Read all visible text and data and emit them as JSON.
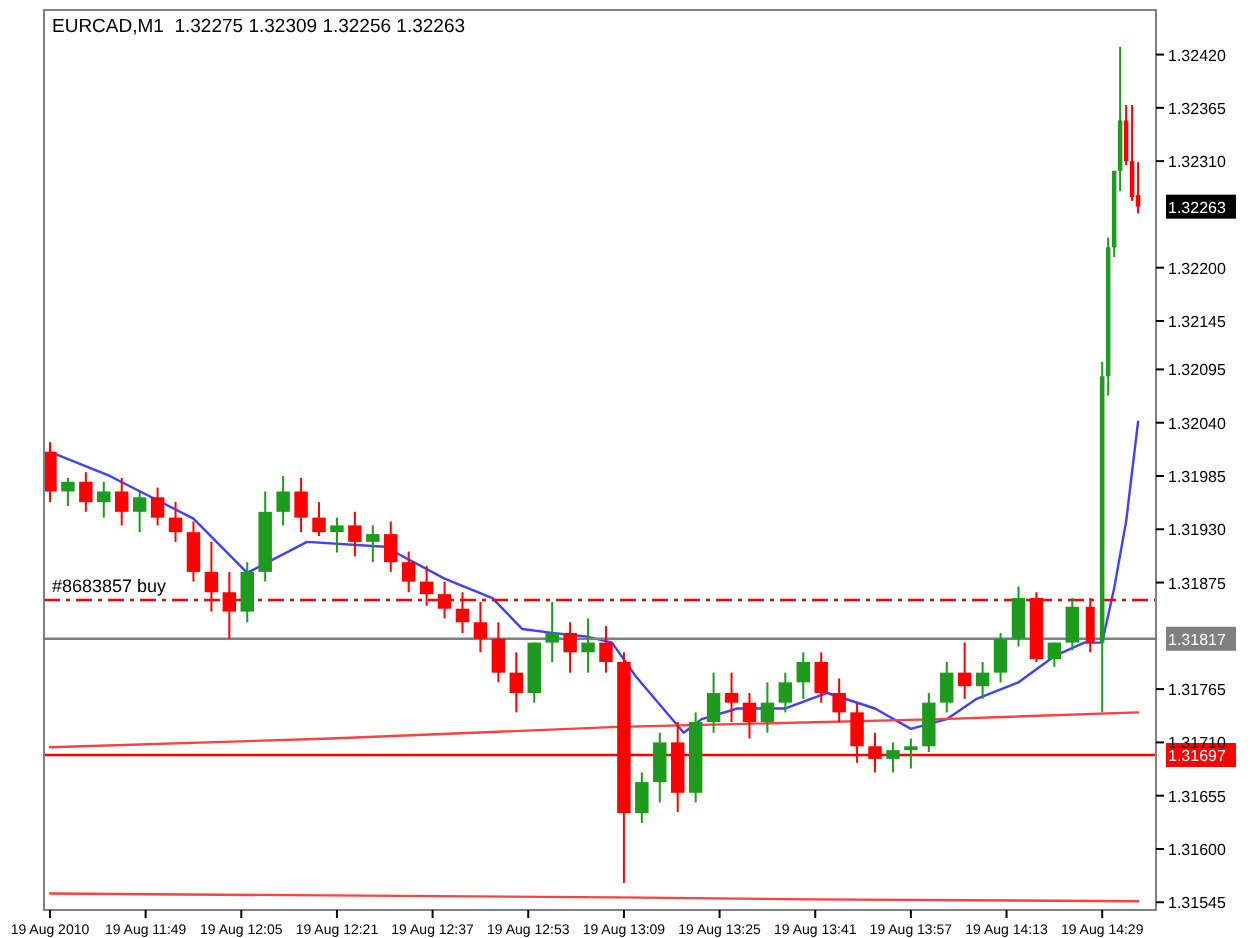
{
  "chart_data": {
    "type": "candlestick",
    "title": "EURCAD,M1  1.32275 1.32309 1.32256 1.32263",
    "x": [
      "2010-08-19T11:33",
      "2010-08-19T11:36",
      "2010-08-19T11:39",
      "2010-08-19T11:42",
      "2010-08-19T11:45",
      "2010-08-19T11:48",
      "2010-08-19T11:51",
      "2010-08-19T11:54",
      "2010-08-19T11:57",
      "2010-08-19T12:00",
      "2010-08-19T12:03",
      "2010-08-19T12:06",
      "2010-08-19T12:09",
      "2010-08-19T12:12",
      "2010-08-19T12:15",
      "2010-08-19T12:18",
      "2010-08-19T12:21",
      "2010-08-19T12:24",
      "2010-08-19T12:27",
      "2010-08-19T12:30",
      "2010-08-19T12:33",
      "2010-08-19T12:36",
      "2010-08-19T12:39",
      "2010-08-19T12:42",
      "2010-08-19T12:45",
      "2010-08-19T12:48",
      "2010-08-19T12:51",
      "2010-08-19T12:54",
      "2010-08-19T12:57",
      "2010-08-19T13:00",
      "2010-08-19T13:03",
      "2010-08-19T13:06",
      "2010-08-19T13:09",
      "2010-08-19T13:12",
      "2010-08-19T13:15",
      "2010-08-19T13:18",
      "2010-08-19T13:21",
      "2010-08-19T13:24",
      "2010-08-19T13:27",
      "2010-08-19T13:30",
      "2010-08-19T13:33",
      "2010-08-19T13:36",
      "2010-08-19T13:39",
      "2010-08-19T13:42",
      "2010-08-19T13:45",
      "2010-08-19T13:48",
      "2010-08-19T13:51",
      "2010-08-19T13:54",
      "2010-08-19T13:57",
      "2010-08-19T14:00",
      "2010-08-19T14:03",
      "2010-08-19T14:06",
      "2010-08-19T14:09",
      "2010-08-19T14:12",
      "2010-08-19T14:15",
      "2010-08-19T14:18",
      "2010-08-19T14:21",
      "2010-08-19T14:24",
      "2010-08-19T14:27",
      "2010-08-19T14:29",
      "2010-08-19T14:30",
      "2010-08-19T14:31",
      "2010-08-19T14:32",
      "2010-08-19T14:33",
      "2010-08-19T14:34",
      "2010-08-19T14:35"
    ],
    "ohlc": [
      [
        1.3201,
        1.3202,
        1.31958,
        1.31969
      ],
      [
        1.31969,
        1.31983,
        1.31954,
        1.31979
      ],
      [
        1.31979,
        1.31989,
        1.31948,
        1.31958
      ],
      [
        1.31958,
        1.31979,
        1.31942,
        1.31969
      ],
      [
        1.31969,
        1.31983,
        1.31934,
        1.31948
      ],
      [
        1.31948,
        1.31969,
        1.31927,
        1.31963
      ],
      [
        1.31963,
        1.31973,
        1.31934,
        1.31942
      ],
      [
        1.31942,
        1.31958,
        1.31917,
        1.31927
      ],
      [
        1.31927,
        1.31938,
        1.31876,
        1.31886
      ],
      [
        1.31886,
        1.31917,
        1.31845,
        1.31865
      ],
      [
        1.31865,
        1.31886,
        1.31817,
        1.31845
      ],
      [
        1.31845,
        1.31896,
        1.31834,
        1.31886
      ],
      [
        1.31886,
        1.31969,
        1.31876,
        1.31948
      ],
      [
        1.31948,
        1.31985,
        1.31934,
        1.31969
      ],
      [
        1.31969,
        1.31983,
        1.31927,
        1.31942
      ],
      [
        1.31942,
        1.31958,
        1.31923,
        1.31927
      ],
      [
        1.31927,
        1.31942,
        1.31906,
        1.31934
      ],
      [
        1.31934,
        1.31948,
        1.31902,
        1.31917
      ],
      [
        1.31917,
        1.31934,
        1.31896,
        1.31925
      ],
      [
        1.31925,
        1.31938,
        1.31886,
        1.31896
      ],
      [
        1.31896,
        1.31907,
        1.31865,
        1.31876
      ],
      [
        1.31876,
        1.31892,
        1.31851,
        1.31863
      ],
      [
        1.31863,
        1.31876,
        1.31838,
        1.31848
      ],
      [
        1.31848,
        1.31865,
        1.31823,
        1.31834
      ],
      [
        1.31834,
        1.31855,
        1.31803,
        1.31817
      ],
      [
        1.31817,
        1.31834,
        1.31772,
        1.31782
      ],
      [
        1.31782,
        1.31803,
        1.31741,
        1.31761
      ],
      [
        1.31761,
        1.31813,
        1.31751,
        1.31813
      ],
      [
        1.31813,
        1.31855,
        1.31793,
        1.31823
      ],
      [
        1.31823,
        1.31834,
        1.31782,
        1.31803
      ],
      [
        1.31803,
        1.31838,
        1.31782,
        1.31813
      ],
      [
        1.31813,
        1.3183,
        1.31782,
        1.31793
      ],
      [
        1.31793,
        1.31803,
        1.31565,
        1.31637
      ],
      [
        1.31637,
        1.31679,
        1.31627,
        1.31669
      ],
      [
        1.31669,
        1.3172,
        1.31648,
        1.3171
      ],
      [
        1.3171,
        1.31731,
        1.31638,
        1.31658
      ],
      [
        1.31658,
        1.31741,
        1.31648,
        1.31731
      ],
      [
        1.31731,
        1.31782,
        1.3172,
        1.31761
      ],
      [
        1.31761,
        1.31782,
        1.31731,
        1.31751
      ],
      [
        1.31751,
        1.31761,
        1.31714,
        1.31731
      ],
      [
        1.31731,
        1.31772,
        1.3172,
        1.31751
      ],
      [
        1.31751,
        1.31782,
        1.31741,
        1.31772
      ],
      [
        1.31772,
        1.31803,
        1.31755,
        1.31793
      ],
      [
        1.31793,
        1.31803,
        1.31751,
        1.31761
      ],
      [
        1.31761,
        1.31776,
        1.31731,
        1.31741
      ],
      [
        1.31741,
        1.31751,
        1.31689,
        1.31706
      ],
      [
        1.31706,
        1.3172,
        1.31679,
        1.31693
      ],
      [
        1.31693,
        1.3171,
        1.31679,
        1.31702
      ],
      [
        1.31702,
        1.31714,
        1.31683,
        1.31706
      ],
      [
        1.31706,
        1.31761,
        1.317,
        1.31751
      ],
      [
        1.31751,
        1.31793,
        1.31741,
        1.31782
      ],
      [
        1.31782,
        1.31813,
        1.31755,
        1.31768
      ],
      [
        1.31768,
        1.31793,
        1.31755,
        1.31782
      ],
      [
        1.31782,
        1.31823,
        1.31772,
        1.31817
      ],
      [
        1.31817,
        1.31871,
        1.31809,
        1.31859
      ],
      [
        1.31859,
        1.31865,
        1.31793,
        1.31796
      ],
      [
        1.31796,
        1.31813,
        1.31788,
        1.31813
      ],
      [
        1.31813,
        1.31859,
        1.31805,
        1.3185
      ],
      [
        1.3185,
        1.31859,
        1.31803,
        1.31813
      ],
      [
        1.31813,
        1.32103,
        1.31741,
        1.32088
      ],
      [
        1.32088,
        1.32231,
        1.32068,
        1.32221
      ],
      [
        1.32221,
        1.323,
        1.32211,
        1.323
      ],
      [
        1.323,
        1.32428,
        1.32279,
        1.32352
      ],
      [
        1.32352,
        1.32368,
        1.32306,
        1.3231
      ],
      [
        1.3231,
        1.32368,
        1.32269,
        1.32273
      ],
      [
        1.32275,
        1.32309,
        1.32256,
        1.32263
      ]
    ],
    "series": [
      {
        "type": "line",
        "color": "#4040ff",
        "x": [
          "2010-08-19T11:33",
          "2010-08-19T11:43",
          "2010-08-19T11:57",
          "2010-08-19T12:06",
          "2010-08-19T12:16",
          "2010-08-19T12:29",
          "2010-08-19T12:39",
          "2010-08-19T12:47",
          "2010-08-19T12:52",
          "2010-08-19T12:57",
          "2010-08-19T13:03",
          "2010-08-19T13:07",
          "2010-08-19T13:11",
          "2010-08-19T13:19",
          "2010-08-19T13:22",
          "2010-08-19T13:28",
          "2010-08-19T13:36",
          "2010-08-19T13:43",
          "2010-08-19T13:51",
          "2010-08-19T13:57",
          "2010-08-19T14:03",
          "2010-08-19T14:08",
          "2010-08-19T14:15",
          "2010-08-19T14:21",
          "2010-08-19T14:26",
          "2010-08-19T14:29",
          "2010-08-19T14:31",
          "2010-08-19T14:33",
          "2010-08-19T14:35"
        ],
        "values": [
          1.3201,
          1.31985,
          1.31941,
          1.31885,
          1.31917,
          1.31912,
          1.31879,
          1.31859,
          1.31827,
          1.31823,
          1.31819,
          1.31813,
          1.31778,
          1.3172,
          1.31734,
          1.31745,
          1.31745,
          1.31761,
          1.31745,
          1.31724,
          1.31734,
          1.31755,
          1.31772,
          1.31799,
          1.31813,
          1.31813,
          1.31869,
          1.31938,
          1.32041
        ]
      },
      {
        "type": "line",
        "color": "#ff4040",
        "x": [
          "2010-08-19T11:33",
          "2010-08-19T12:20",
          "2010-08-19T13:08",
          "2010-08-19T14:02",
          "2010-08-19T14:35"
        ],
        "values": [
          1.31705,
          1.31714,
          1.31726,
          1.31734,
          1.31741
        ]
      },
      {
        "type": "line",
        "color": "#ff4040",
        "x": [
          "2010-08-19T11:33",
          "2010-08-19T13:08",
          "2010-08-19T13:40",
          "2010-08-19T14:35"
        ],
        "values": [
          1.31554,
          1.3155,
          1.31548,
          1.31546
        ]
      }
    ],
    "ref_lines": [
      {
        "axis": "y",
        "value": 1.31857,
        "label": "#8683857 buy",
        "color": "#ff0000",
        "line_style": "dashed"
      },
      {
        "axis": "y",
        "value": 1.31817,
        "label": "1.31817",
        "color": "#808080",
        "line_style": "solid"
      },
      {
        "axis": "y",
        "value": 1.31697,
        "label": "1.31697",
        "color": "#ff0000",
        "line_style": "solid"
      }
    ],
    "annotations": [
      "1.32263"
    ],
    "xlim": [
      "2010-08-19T11:32",
      "2010-08-19T14:38"
    ],
    "xticks": [
      {
        "value": "2010-08-19T11:33",
        "label": "19 Aug 2010"
      },
      {
        "value": "2010-08-19T11:49",
        "label": "19 Aug 11:49"
      },
      {
        "value": "2010-08-19T12:05",
        "label": "19 Aug 12:05"
      },
      {
        "value": "2010-08-19T12:21",
        "label": "19 Aug 12:21"
      },
      {
        "value": "2010-08-19T12:37",
        "label": "19 Aug 12:37"
      },
      {
        "value": "2010-08-19T12:53",
        "label": "19 Aug 12:53"
      },
      {
        "value": "2010-08-19T13:09",
        "label": "19 Aug 13:09"
      },
      {
        "value": "2010-08-19T13:25",
        "label": "19 Aug 13:25"
      },
      {
        "value": "2010-08-19T13:41",
        "label": "19 Aug 13:41"
      },
      {
        "value": "2010-08-19T13:57",
        "label": "19 Aug 13:57"
      },
      {
        "value": "2010-08-19T14:13",
        "label": "19 Aug 14:13"
      },
      {
        "value": "2010-08-19T14:29",
        "label": "19 Aug 14:29"
      }
    ],
    "ylim": [
      1.31537,
      1.32466
    ],
    "yticks": [
      {
        "value": 1.3242,
        "label": "1.32420"
      },
      {
        "value": 1.32365,
        "label": "1.32365"
      },
      {
        "value": 1.3231,
        "label": "1.32310"
      },
      {
        "value": 1.322,
        "label": "1.32200"
      },
      {
        "value": 1.32145,
        "label": "1.32145"
      },
      {
        "value": 1.32095,
        "label": "1.32095"
      },
      {
        "value": 1.3204,
        "label": "1.32040"
      },
      {
        "value": 1.31985,
        "label": "1.31985"
      },
      {
        "value": 1.3193,
        "label": "1.31930"
      },
      {
        "value": 1.31875,
        "label": "1.31875"
      },
      {
        "value": 1.31765,
        "label": "1.31765"
      },
      {
        "value": 1.3171,
        "label": "1.31710"
      },
      {
        "value": 1.31655,
        "label": "1.31655"
      },
      {
        "value": 1.316,
        "label": "1.31600"
      },
      {
        "value": 1.31545,
        "label": "1.31545"
      }
    ],
    "grid": false
  }
}
